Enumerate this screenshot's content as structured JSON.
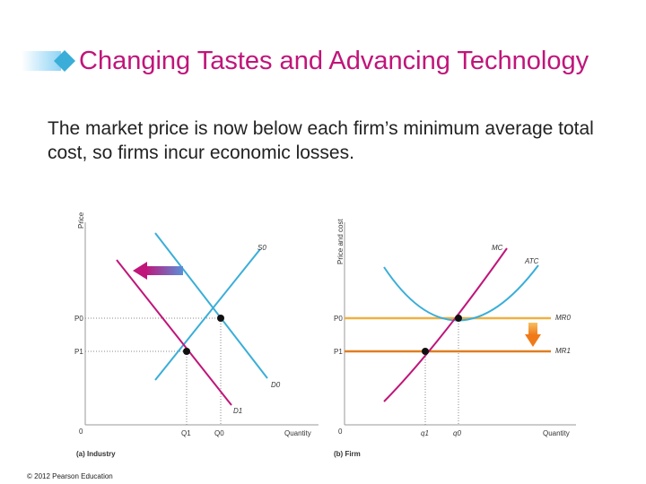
{
  "slide": {
    "title": "Changing Tastes and Advancing Technology",
    "subtitle": "The market price is now below each firm’s minimum average total cost, so firms incur economic losses.",
    "copyright": "© 2012 Pearson Education"
  },
  "colors": {
    "title": "#c0157a",
    "supply": "#3aaed8",
    "demand": "#c0157a",
    "mr0": "#f0b040",
    "mr1": "#e07e20",
    "atc": "#3aaed8",
    "mc": "#c0157a",
    "arrow_left": "#5a8fd8",
    "arrow_down": "#f08020"
  },
  "chart_data": [
    {
      "type": "line",
      "caption": "(a) Industry",
      "xlabel": "Quantity",
      "ylabel": "Price",
      "origin_label": "0",
      "y_ticks": [
        "P0",
        "P1"
      ],
      "x_ticks": [
        "Q1",
        "Q0"
      ],
      "series": [
        {
          "name": "S0",
          "kind": "supply"
        },
        {
          "name": "D0",
          "kind": "demand"
        },
        {
          "name": "D1",
          "kind": "demand"
        }
      ],
      "equilibria": [
        {
          "q": "Q0",
          "p": "P0"
        },
        {
          "q": "Q1",
          "p": "P1"
        }
      ],
      "annotation": "demand shifts leftward (arrow)"
    },
    {
      "type": "line",
      "caption": "(b) Firm",
      "xlabel": "Quantity",
      "ylabel": "Price and cost",
      "origin_label": "0",
      "y_ticks": [
        "P0",
        "P1"
      ],
      "x_ticks": [
        "q1",
        "q0"
      ],
      "series": [
        {
          "name": "MC",
          "kind": "cost"
        },
        {
          "name": "ATC",
          "kind": "cost"
        },
        {
          "name": "MR0",
          "kind": "revenue"
        },
        {
          "name": "MR1",
          "kind": "revenue"
        }
      ],
      "equilibria": [
        {
          "q": "q0",
          "p": "P0"
        },
        {
          "q": "q1",
          "p": "P1"
        }
      ],
      "annotation": "marginal revenue shifts downward (arrow)"
    }
  ]
}
